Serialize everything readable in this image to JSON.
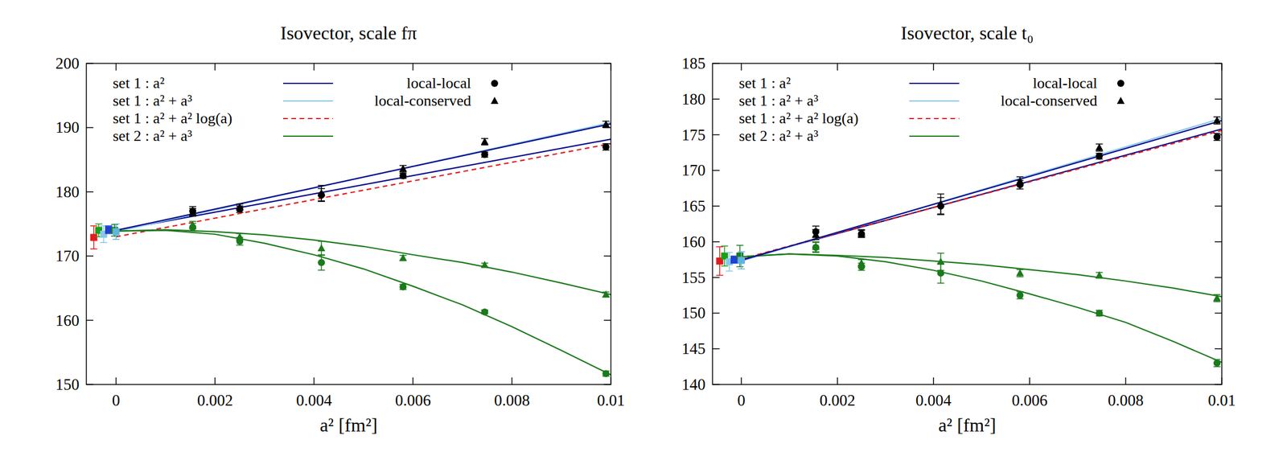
{
  "chart_data": [
    {
      "type": "line",
      "title": "Isovector, scale fπ",
      "xlabel": "a² [fm²]",
      "xlim": [
        -0.0006,
        0.01
      ],
      "xticks": [
        0,
        0.002,
        0.004,
        0.006,
        0.008,
        0.01
      ],
      "ylim": [
        150,
        200
      ],
      "yticks": [
        150,
        160,
        170,
        180,
        190,
        200
      ],
      "legend": "upper left",
      "series": [
        {
          "name": "set 1 : a²",
          "type": "line",
          "color": "#0a0a8c",
          "line_style": "solid",
          "x": [
            0,
            0.01
          ],
          "values": [
            174.0,
            188.2
          ]
        },
        {
          "name": "set 1 : a² + a³",
          "type": "line",
          "color": "#87c8ea",
          "line_style": "solid",
          "x": [
            0,
            0.01
          ],
          "values": [
            173.8,
            190.8
          ]
        },
        {
          "name": "set 1 : a² + a² log(a)",
          "type": "line",
          "color": "#e41a1c",
          "line_style": "dashed",
          "x": [
            0,
            0.01
          ],
          "values": [
            173.0,
            187.5
          ]
        },
        {
          "name": "set 2 : a² + a³",
          "type": "line",
          "color": "#1b7a1b",
          "line_style": "solid",
          "x": [
            0,
            0.001,
            0.002,
            0.003,
            0.004,
            0.005,
            0.006,
            0.007,
            0.008,
            0.009,
            0.01
          ],
          "values": [
            173.9,
            174.0,
            173.4,
            172.0,
            170.2,
            168.0,
            165.3,
            162.4,
            159.0,
            155.3,
            151.5
          ]
        },
        {
          "type": "line",
          "color": "#1b7a1b",
          "line_style": "solid",
          "x": [
            0,
            0.001,
            0.002,
            0.003,
            0.004,
            0.005,
            0.006,
            0.007,
            0.008,
            0.009,
            0.01
          ],
          "values": [
            173.9,
            174.1,
            173.8,
            173.3,
            172.5,
            171.5,
            170.2,
            169.0,
            167.5,
            165.8,
            164.0
          ]
        },
        {
          "type": "line",
          "color": "#0a0a8c",
          "line_style": "solid",
          "x": [
            0,
            0.01
          ],
          "values": [
            174.0,
            190.6
          ]
        },
        {
          "name": "local-local",
          "type": "scatter",
          "marker": "circle",
          "color": "#000000",
          "x": [
            0.00155,
            0.0025,
            0.00415,
            0.0058,
            0.00745,
            0.0099
          ],
          "values": [
            177.0,
            177.3,
            179.5,
            182.5,
            185.8,
            187.0
          ],
          "errors": [
            0.7,
            0.5,
            1.0,
            0.4,
            0.4,
            0.5
          ]
        },
        {
          "name": "local-conserved",
          "type": "scatter",
          "marker": "triangle",
          "color": "#000000",
          "x": [
            0.00155,
            0.0025,
            0.00415,
            0.0058,
            0.00745,
            0.0099
          ],
          "values": [
            176.8,
            177.6,
            179.8,
            183.6,
            187.8,
            190.5
          ],
          "errors": [
            0.6,
            0.5,
            1.2,
            0.5,
            0.5,
            0.5
          ]
        },
        {
          "type": "scatter",
          "marker": "circle",
          "color": "#1b7a1b",
          "x": [
            0.00155,
            0.0025,
            0.00415,
            0.0058,
            0.00745,
            0.0099
          ],
          "values": [
            174.5,
            172.3,
            169.0,
            165.2,
            161.3,
            151.7
          ],
          "errors": [
            0.6,
            0.6,
            1.2,
            0.4,
            0.3,
            0.4
          ]
        },
        {
          "type": "scatter",
          "marker": "triangle",
          "color": "#1b7a1b",
          "x": [
            0.00155,
            0.0025,
            0.00415,
            0.0058,
            0.00745,
            0.0099
          ],
          "values": [
            174.8,
            173.0,
            171.2,
            169.7,
            168.6,
            164.0
          ],
          "errors": [
            0.6,
            0.5,
            1.1,
            0.4,
            0.3,
            0.4
          ]
        },
        {
          "type": "scatter",
          "marker": "square",
          "colors": [
            "#e41a1c",
            "#1b9e1b",
            "#87c8ea",
            "#1f3fd6",
            "#1b7a1b",
            "#5fb6d9"
          ],
          "x": [
            -0.00045,
            -0.00035,
            -0.00025,
            -0.00015,
            -3e-05,
            0
          ],
          "values": [
            172.9,
            174.0,
            173.4,
            174.1,
            174.0,
            173.8
          ],
          "errors": [
            1.8,
            1.0,
            1.3,
            0.6,
            0.9,
            1.2
          ]
        }
      ]
    },
    {
      "type": "line",
      "title": "Isovector, scale t₀",
      "xlabel": "a² [fm²]",
      "xlim": [
        -0.0006,
        0.01
      ],
      "xticks": [
        0,
        0.002,
        0.004,
        0.006,
        0.008,
        0.01
      ],
      "ylim": [
        140,
        185
      ],
      "yticks": [
        140,
        145,
        150,
        155,
        160,
        165,
        170,
        175,
        180,
        185
      ],
      "legend": "upper left",
      "series": [
        {
          "name": "set 1 : a²",
          "type": "line",
          "color": "#0a0a8c",
          "line_style": "solid",
          "x": [
            0,
            0.01
          ],
          "values": [
            157.5,
            175.8
          ]
        },
        {
          "name": "set 1 : a² + a³",
          "type": "line",
          "color": "#87c8ea",
          "line_style": "solid",
          "x": [
            0,
            0.01
          ],
          "values": [
            157.3,
            177.3
          ]
        },
        {
          "name": "set 1 : a² + a² log(a)",
          "type": "line",
          "color": "#e41a1c",
          "line_style": "dashed",
          "x": [
            0,
            0.01
          ],
          "values": [
            157.6,
            175.6
          ]
        },
        {
          "name": "set 2 : a² + a³",
          "type": "line",
          "color": "#1b7a1b",
          "line_style": "solid",
          "x": [
            0,
            0.001,
            0.002,
            0.003,
            0.004,
            0.005,
            0.006,
            0.007,
            0.008,
            0.009,
            0.01
          ],
          "values": [
            157.9,
            158.3,
            158.0,
            157.2,
            156.0,
            154.5,
            152.7,
            150.8,
            148.7,
            146.0,
            143.1
          ]
        },
        {
          "type": "line",
          "color": "#1b7a1b",
          "line_style": "solid",
          "x": [
            0,
            0.001,
            0.002,
            0.003,
            0.004,
            0.005,
            0.006,
            0.007,
            0.008,
            0.009,
            0.01
          ],
          "values": [
            157.9,
            158.3,
            158.1,
            157.8,
            157.3,
            156.8,
            156.1,
            155.4,
            154.5,
            153.5,
            152.3
          ]
        },
        {
          "type": "line",
          "color": "#0a0a8c",
          "line_style": "solid",
          "x": [
            0,
            0.01
          ],
          "values": [
            157.4,
            177.0
          ]
        },
        {
          "name": "local-local",
          "type": "scatter",
          "marker": "circle",
          "color": "#000000",
          "x": [
            0.00155,
            0.0025,
            0.00415,
            0.0058,
            0.00745,
            0.0099
          ],
          "values": [
            161.4,
            161.1,
            165.0,
            168.0,
            172.0,
            174.7
          ],
          "errors": [
            0.8,
            0.5,
            1.2,
            0.6,
            0.4,
            0.5
          ]
        },
        {
          "name": "local-conserved",
          "type": "scatter",
          "marker": "triangle",
          "color": "#000000",
          "x": [
            0.00155,
            0.0025,
            0.00415,
            0.0058,
            0.00745,
            0.0099
          ],
          "values": [
            161.0,
            161.2,
            165.3,
            168.5,
            173.2,
            177.0
          ],
          "errors": [
            0.7,
            0.5,
            1.4,
            0.6,
            0.5,
            0.5
          ]
        },
        {
          "type": "scatter",
          "marker": "circle",
          "color": "#1b7a1b",
          "x": [
            0.00155,
            0.0025,
            0.00415,
            0.0058,
            0.00745,
            0.0099
          ],
          "values": [
            159.2,
            156.5,
            155.6,
            152.5,
            150.0,
            143.0
          ],
          "errors": [
            0.7,
            0.5,
            1.4,
            0.5,
            0.4,
            0.5
          ]
        },
        {
          "type": "scatter",
          "marker": "triangle",
          "color": "#1b7a1b",
          "x": [
            0.00155,
            0.0025,
            0.00415,
            0.0058,
            0.00745,
            0.0099
          ],
          "values": [
            159.3,
            157.0,
            157.2,
            155.6,
            155.3,
            152.1
          ],
          "errors": [
            0.7,
            0.5,
            1.2,
            0.5,
            0.4,
            0.5
          ]
        },
        {
          "type": "scatter",
          "marker": "square",
          "colors": [
            "#e41a1c",
            "#1b9e1b",
            "#87c8ea",
            "#1f3fd6",
            "#1b7a1b",
            "#5fb6d9"
          ],
          "x": [
            -0.00045,
            -0.00035,
            -0.00025,
            -0.00015,
            -3e-05,
            0
          ],
          "values": [
            157.3,
            158.0,
            157.2,
            157.5,
            158.0,
            157.4
          ],
          "errors": [
            2.0,
            1.4,
            1.3,
            0.5,
            1.5,
            1.2
          ]
        }
      ]
    }
  ]
}
